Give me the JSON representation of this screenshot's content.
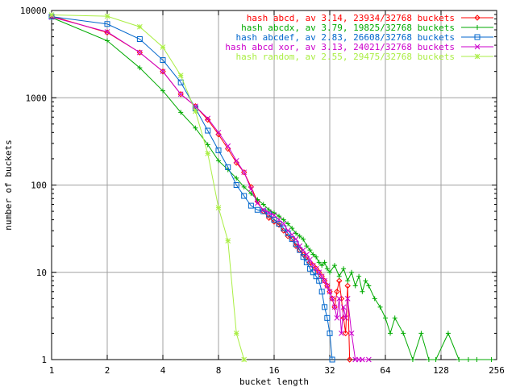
{
  "chart_data": {
    "type": "line",
    "title": "",
    "xlabel": "bucket length",
    "ylabel": "number of buckets",
    "x_scale": "log2",
    "y_scale": "log10",
    "xlim": [
      1,
      256
    ],
    "ylim": [
      1,
      10000
    ],
    "x_ticks": [
      1,
      2,
      4,
      8,
      16,
      32,
      64,
      128,
      256
    ],
    "x_tick_labels": [
      "1",
      "2",
      "4",
      "8",
      "16",
      "32",
      "64",
      "128",
      "256"
    ],
    "y_ticks": [
      1,
      10,
      100,
      1000,
      10000
    ],
    "y_tick_labels": [
      "1",
      "10",
      "100",
      "1000",
      "10000"
    ],
    "grid": true,
    "legend_position": "top-right",
    "series": [
      {
        "name": "hash abcd, av 3.14, 23934/32768 buckets",
        "color": "#ff0000",
        "marker": "diamond",
        "points": [
          [
            1,
            8600
          ],
          [
            2,
            5600
          ],
          [
            3,
            3300
          ],
          [
            4,
            2000
          ],
          [
            5,
            1100
          ],
          [
            6,
            800
          ],
          [
            7,
            560
          ],
          [
            8,
            380
          ],
          [
            9,
            260
          ],
          [
            10,
            180
          ],
          [
            11,
            140
          ],
          [
            12,
            95
          ],
          [
            13,
            65
          ],
          [
            14,
            50
          ],
          [
            15,
            42
          ],
          [
            16,
            38
          ],
          [
            17,
            35
          ],
          [
            18,
            30
          ],
          [
            19,
            26
          ],
          [
            20,
            24
          ],
          [
            21,
            20
          ],
          [
            22,
            18
          ],
          [
            23,
            16
          ],
          [
            24,
            15
          ],
          [
            25,
            13
          ],
          [
            26,
            12
          ],
          [
            27,
            11
          ],
          [
            28,
            10
          ],
          [
            29,
            9
          ],
          [
            30,
            8
          ],
          [
            31,
            7
          ],
          [
            32,
            6
          ],
          [
            33,
            5
          ],
          [
            34,
            4
          ],
          [
            35,
            6
          ],
          [
            36,
            8
          ],
          [
            37,
            5
          ],
          [
            38,
            3
          ],
          [
            39,
            2
          ],
          [
            40,
            7
          ],
          [
            41,
            1
          ]
        ]
      },
      {
        "name": "hash abcdx, av 3.79, 19825/32768 buckets",
        "color": "#00aa00",
        "marker": "plus",
        "points": [
          [
            1,
            8300
          ],
          [
            2,
            4500
          ],
          [
            3,
            2200
          ],
          [
            4,
            1200
          ],
          [
            5,
            680
          ],
          [
            6,
            450
          ],
          [
            7,
            290
          ],
          [
            8,
            190
          ],
          [
            9,
            150
          ],
          [
            10,
            120
          ],
          [
            11,
            95
          ],
          [
            12,
            80
          ],
          [
            13,
            68
          ],
          [
            14,
            60
          ],
          [
            15,
            52
          ],
          [
            16,
            48
          ],
          [
            17,
            44
          ],
          [
            18,
            40
          ],
          [
            19,
            36
          ],
          [
            20,
            32
          ],
          [
            21,
            28
          ],
          [
            22,
            26
          ],
          [
            23,
            24
          ],
          [
            24,
            20
          ],
          [
            25,
            18
          ],
          [
            26,
            16
          ],
          [
            27,
            15
          ],
          [
            28,
            13
          ],
          [
            29,
            12
          ],
          [
            30,
            13
          ],
          [
            31,
            11
          ],
          [
            32,
            10
          ],
          [
            34,
            12
          ],
          [
            36,
            9
          ],
          [
            38,
            11
          ],
          [
            40,
            8
          ],
          [
            42,
            10
          ],
          [
            44,
            7
          ],
          [
            46,
            9
          ],
          [
            48,
            6
          ],
          [
            50,
            8
          ],
          [
            52,
            7
          ],
          [
            56,
            5
          ],
          [
            60,
            4
          ],
          [
            64,
            3
          ],
          [
            68,
            2
          ],
          [
            72,
            3
          ],
          [
            80,
            2
          ],
          [
            90,
            1
          ],
          [
            100,
            2
          ],
          [
            110,
            1
          ],
          [
            120,
            1
          ],
          [
            140,
            2
          ],
          [
            160,
            1
          ],
          [
            180,
            1
          ],
          [
            200,
            1
          ],
          [
            240,
            1
          ]
        ]
      },
      {
        "name": "hash abcdef, av 2.83, 26608/32768 buckets",
        "color": "#0066cc",
        "marker": "square",
        "points": [
          [
            1,
            8500
          ],
          [
            2,
            7000
          ],
          [
            3,
            4700
          ],
          [
            4,
            2700
          ],
          [
            5,
            1500
          ],
          [
            6,
            760
          ],
          [
            7,
            420
          ],
          [
            8,
            250
          ],
          [
            9,
            160
          ],
          [
            10,
            100
          ],
          [
            11,
            75
          ],
          [
            12,
            58
          ],
          [
            13,
            52
          ],
          [
            14,
            50
          ],
          [
            15,
            46
          ],
          [
            16,
            40
          ],
          [
            17,
            36
          ],
          [
            18,
            32
          ],
          [
            19,
            28
          ],
          [
            20,
            24
          ],
          [
            21,
            21
          ],
          [
            22,
            18
          ],
          [
            23,
            15
          ],
          [
            24,
            13
          ],
          [
            25,
            11
          ],
          [
            26,
            10
          ],
          [
            27,
            9
          ],
          [
            28,
            8
          ],
          [
            29,
            6
          ],
          [
            30,
            4
          ],
          [
            31,
            3
          ],
          [
            32,
            2
          ],
          [
            33,
            1
          ]
        ]
      },
      {
        "name": "hash abcd xor, av 3.13, 24021/32768 buckets",
        "color": "#cc00cc",
        "marker": "cross",
        "points": [
          [
            1,
            8400
          ],
          [
            2,
            5700
          ],
          [
            3,
            3300
          ],
          [
            4,
            2000
          ],
          [
            5,
            1100
          ],
          [
            6,
            800
          ],
          [
            7,
            580
          ],
          [
            8,
            400
          ],
          [
            9,
            280
          ],
          [
            10,
            190
          ],
          [
            11,
            140
          ],
          [
            12,
            90
          ],
          [
            13,
            62
          ],
          [
            14,
            52
          ],
          [
            15,
            48
          ],
          [
            16,
            45
          ],
          [
            17,
            40
          ],
          [
            18,
            36
          ],
          [
            19,
            30
          ],
          [
            20,
            27
          ],
          [
            21,
            24
          ],
          [
            22,
            20
          ],
          [
            23,
            18
          ],
          [
            24,
            16
          ],
          [
            25,
            14
          ],
          [
            26,
            12
          ],
          [
            27,
            11
          ],
          [
            28,
            10
          ],
          [
            29,
            9
          ],
          [
            30,
            8
          ],
          [
            31,
            7
          ],
          [
            32,
            6
          ],
          [
            33,
            5
          ],
          [
            34,
            4
          ],
          [
            35,
            3
          ],
          [
            36,
            5
          ],
          [
            37,
            2
          ],
          [
            38,
            4
          ],
          [
            39,
            3
          ],
          [
            40,
            5
          ],
          [
            42,
            2
          ],
          [
            44,
            1
          ],
          [
            46,
            1
          ],
          [
            48,
            1
          ],
          [
            52,
            1
          ]
        ]
      },
      {
        "name": "hash random, av 2.55, 29475/32768 buckets",
        "color": "#aaee44",
        "marker": "star",
        "points": [
          [
            1,
            8900
          ],
          [
            2,
            8600
          ],
          [
            3,
            6500
          ],
          [
            4,
            3800
          ],
          [
            5,
            1800
          ],
          [
            6,
            700
          ],
          [
            7,
            230
          ],
          [
            8,
            55
          ],
          [
            9,
            23
          ],
          [
            10,
            2
          ],
          [
            11,
            1
          ]
        ]
      }
    ]
  }
}
